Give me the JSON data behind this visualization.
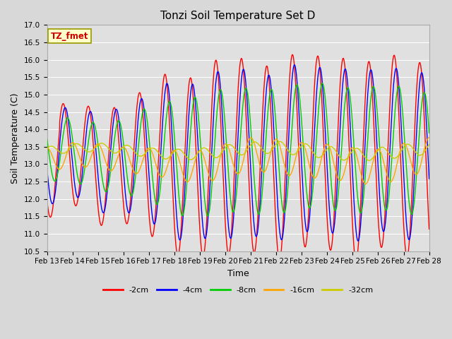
{
  "title": "Tonzi Soil Temperature Set D",
  "xlabel": "Time",
  "ylabel": "Soil Temperature (C)",
  "ylim": [
    10.5,
    17.0
  ],
  "yticks": [
    10.5,
    11.0,
    11.5,
    12.0,
    12.5,
    13.0,
    13.5,
    14.0,
    14.5,
    15.0,
    15.5,
    16.0,
    16.5,
    17.0
  ],
  "xtick_labels": [
    "Feb 13",
    "Feb 14",
    "Feb 15",
    "Feb 16",
    "Feb 17",
    "Feb 18",
    "Feb 19",
    "Feb 20",
    "Feb 21",
    "Feb 22",
    "Feb 23",
    "Feb 24",
    "Feb 25",
    "Feb 26",
    "Feb 27",
    "Feb 28"
  ],
  "colors": {
    "-2cm": "#FF0000",
    "-4cm": "#0000FF",
    "-8cm": "#00CC00",
    "-16cm": "#FFA500",
    "-32cm": "#CCCC00"
  },
  "legend_label": "TZ_fmet",
  "legend_box_facecolor": "#FFFFCC",
  "legend_box_edge": "#999900",
  "fig_facecolor": "#D8D8D8",
  "plot_bg_color": "#E0E0E0",
  "grid_color": "#FFFFFF",
  "title_fontsize": 11,
  "axis_fontsize": 9,
  "tick_fontsize": 7.5
}
